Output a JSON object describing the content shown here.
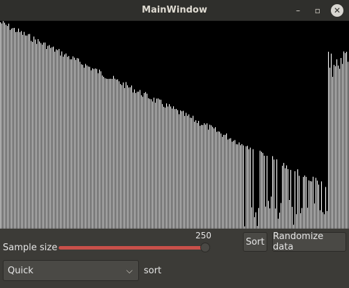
{
  "window": {
    "title": "MainWindow",
    "controls": {
      "minimize": "–",
      "maximize": "▫",
      "close": "✕"
    }
  },
  "visualization": {
    "bar_color": "#ffffff",
    "background": "#000000",
    "sample_size": 250
  },
  "controls": {
    "sample_size_label": "Sample size",
    "sample_size_value": "250",
    "sample_size_fraction": 1.0,
    "sort_button": "Sort",
    "randomize_button": "Randomize data",
    "algorithm": {
      "selected": "Quick",
      "options": [
        "Quick"
      ]
    },
    "sort_suffix": "sort"
  },
  "colors": {
    "slider_fill": "#c9504a",
    "window_bg": "#3c3b37",
    "titlebar_bg": "#2f2f2c"
  }
}
